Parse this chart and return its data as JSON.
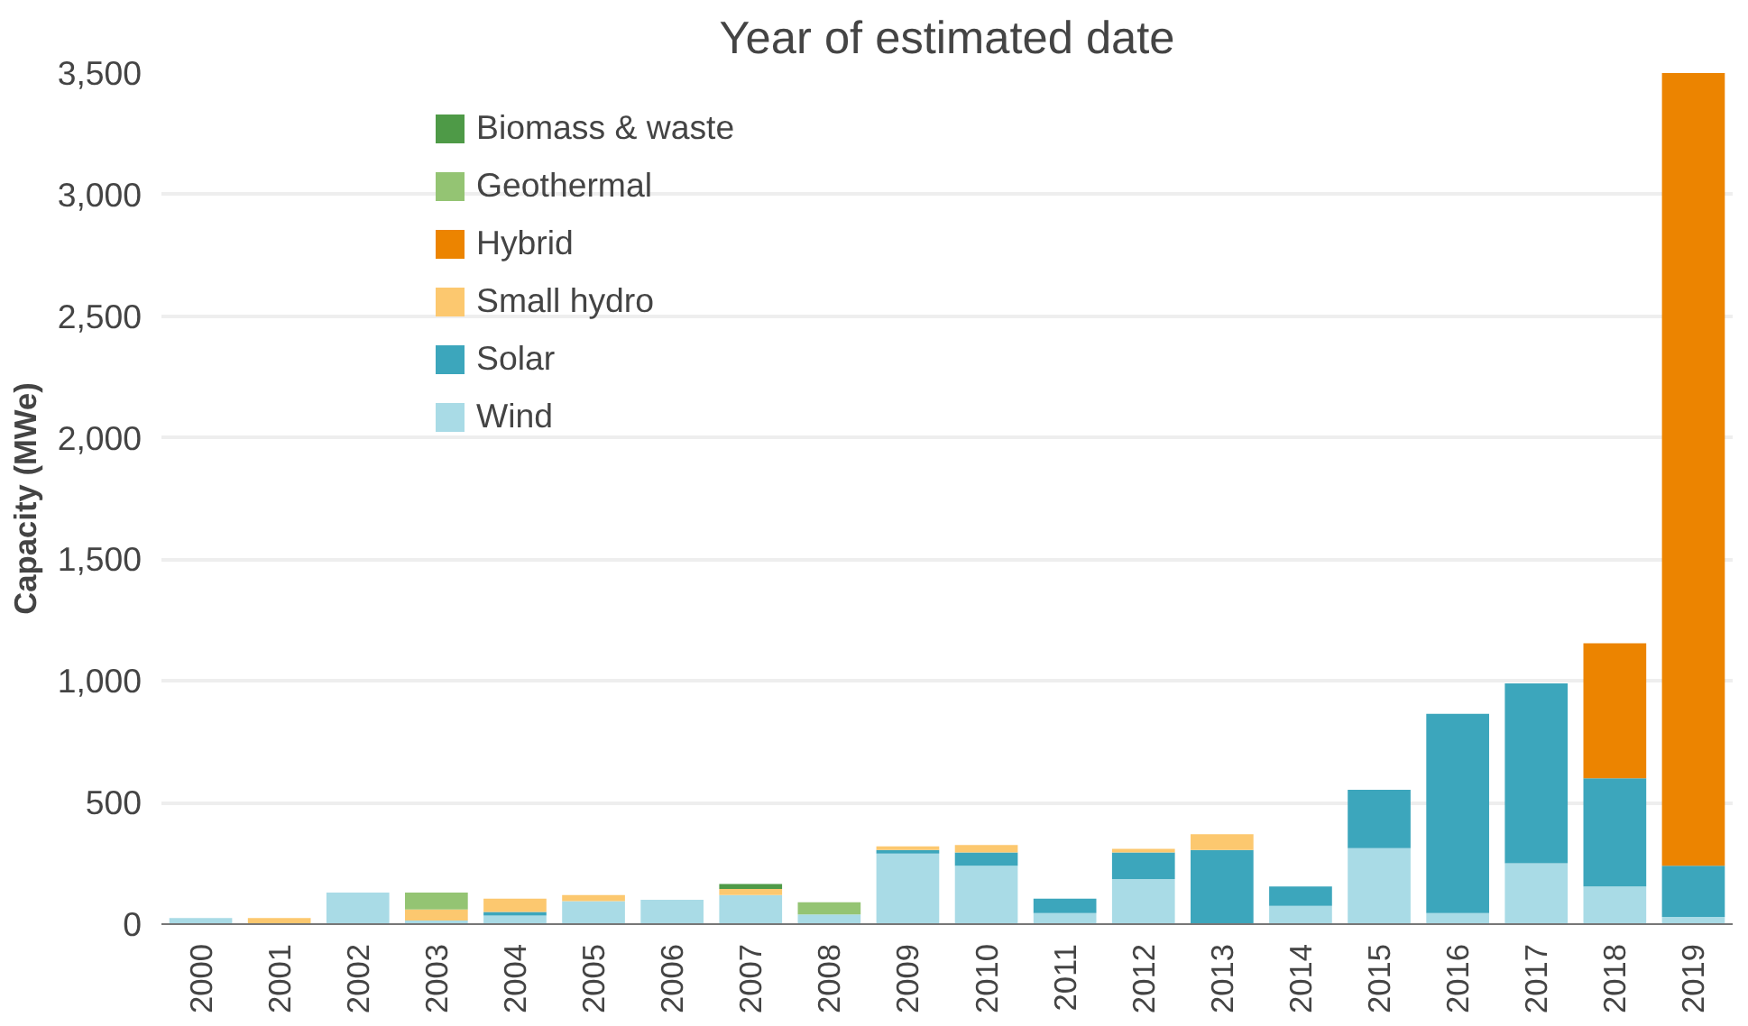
{
  "chart_data": {
    "type": "bar",
    "title": "Year of estimated date",
    "ylabel": "Capacity (MWe)",
    "stacked": true,
    "categories": [
      "2000",
      "2001",
      "2002",
      "2003",
      "2004",
      "2005",
      "2006",
      "2007",
      "2008",
      "2009",
      "2010",
      "2011",
      "2012",
      "2013",
      "2014",
      "2015",
      "2016",
      "2017",
      "2018",
      "2019"
    ],
    "series": [
      {
        "name": "Wind",
        "color": "#a9dbe6",
        "values": [
          25,
          0,
          130,
          15,
          35,
          95,
          100,
          120,
          40,
          290,
          240,
          45,
          185,
          0,
          75,
          312,
          45,
          250,
          155,
          30
        ]
      },
      {
        "name": "Solar",
        "color": "#3ca6bc",
        "values": [
          0,
          0,
          0,
          0,
          15,
          0,
          0,
          0,
          0,
          15,
          55,
          60,
          110,
          305,
          80,
          240,
          820,
          740,
          445,
          210
        ]
      },
      {
        "name": "Small hydro",
        "color": "#fcc86f",
        "values": [
          0,
          25,
          0,
          45,
          55,
          25,
          0,
          25,
          0,
          15,
          30,
          0,
          15,
          65,
          0,
          0,
          0,
          0,
          0,
          0
        ]
      },
      {
        "name": "Hybrid",
        "color": "#ec8400",
        "values": [
          0,
          0,
          0,
          0,
          0,
          0,
          0,
          0,
          0,
          0,
          0,
          0,
          0,
          0,
          0,
          0,
          0,
          0,
          555,
          3260
        ]
      },
      {
        "name": "Geothermal",
        "color": "#94c473",
        "values": [
          0,
          0,
          0,
          70,
          0,
          0,
          0,
          0,
          50,
          0,
          0,
          0,
          0,
          0,
          0,
          0,
          0,
          0,
          0,
          0
        ]
      },
      {
        "name": "Biomass & waste",
        "color": "#4e9a47",
        "values": [
          0,
          0,
          0,
          0,
          0,
          0,
          0,
          20,
          0,
          0,
          0,
          0,
          0,
          0,
          0,
          0,
          0,
          0,
          0,
          0
        ]
      }
    ],
    "ylim": [
      0,
      3500
    ],
    "yticks": [
      0,
      {
        "value": 500,
        "label": "500"
      },
      {
        "value": 1000,
        "label": "1,000"
      },
      {
        "value": 1500,
        "label": "1,500"
      },
      {
        "value": 2000,
        "label": "2,000"
      },
      {
        "value": 2500,
        "label": "2,500"
      },
      {
        "value": 3000,
        "label": "3,000"
      },
      {
        "value": 3500,
        "label": "3,500"
      }
    ],
    "grid": "y",
    "legend": "top left"
  }
}
